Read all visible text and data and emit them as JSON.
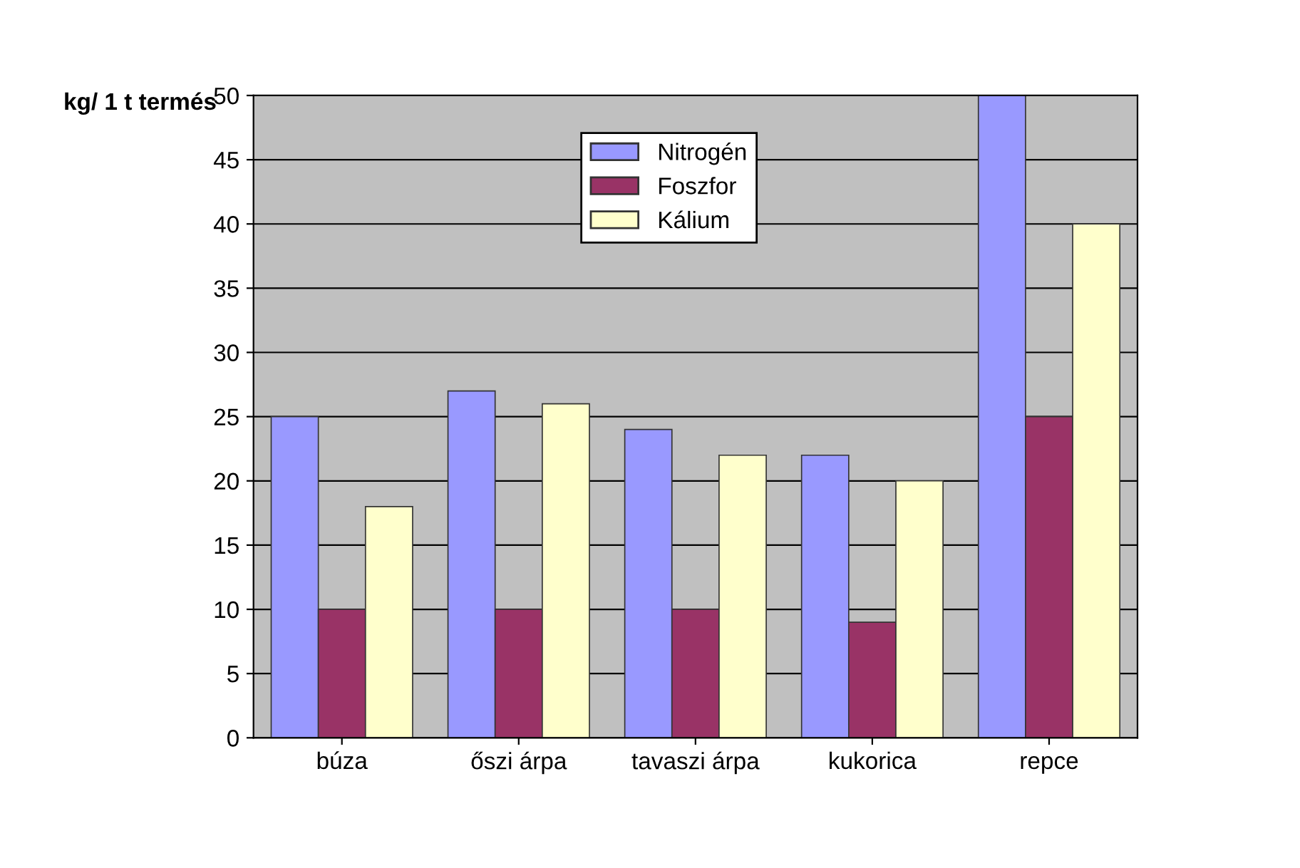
{
  "chart_data": {
    "type": "bar",
    "ylabel": "kg/ 1 t termés",
    "categories": [
      "búza",
      "őszi árpa",
      "tavaszi árpa",
      "kukorica",
      "repce"
    ],
    "series": [
      {
        "name": "Nitrogén",
        "color": "#9999ff",
        "values": [
          25,
          27,
          24,
          22,
          50
        ]
      },
      {
        "name": "Foszfor",
        "color": "#993366",
        "values": [
          10,
          10,
          10,
          9,
          25
        ]
      },
      {
        "name": "Kálium",
        "color": "#ffffcc",
        "values": [
          18,
          26,
          22,
          20,
          40
        ]
      }
    ],
    "ylim": [
      0,
      50
    ],
    "yticks": [
      0,
      5,
      10,
      15,
      20,
      25,
      30,
      35,
      40,
      45,
      50
    ],
    "grid": "y",
    "legend": "top"
  }
}
